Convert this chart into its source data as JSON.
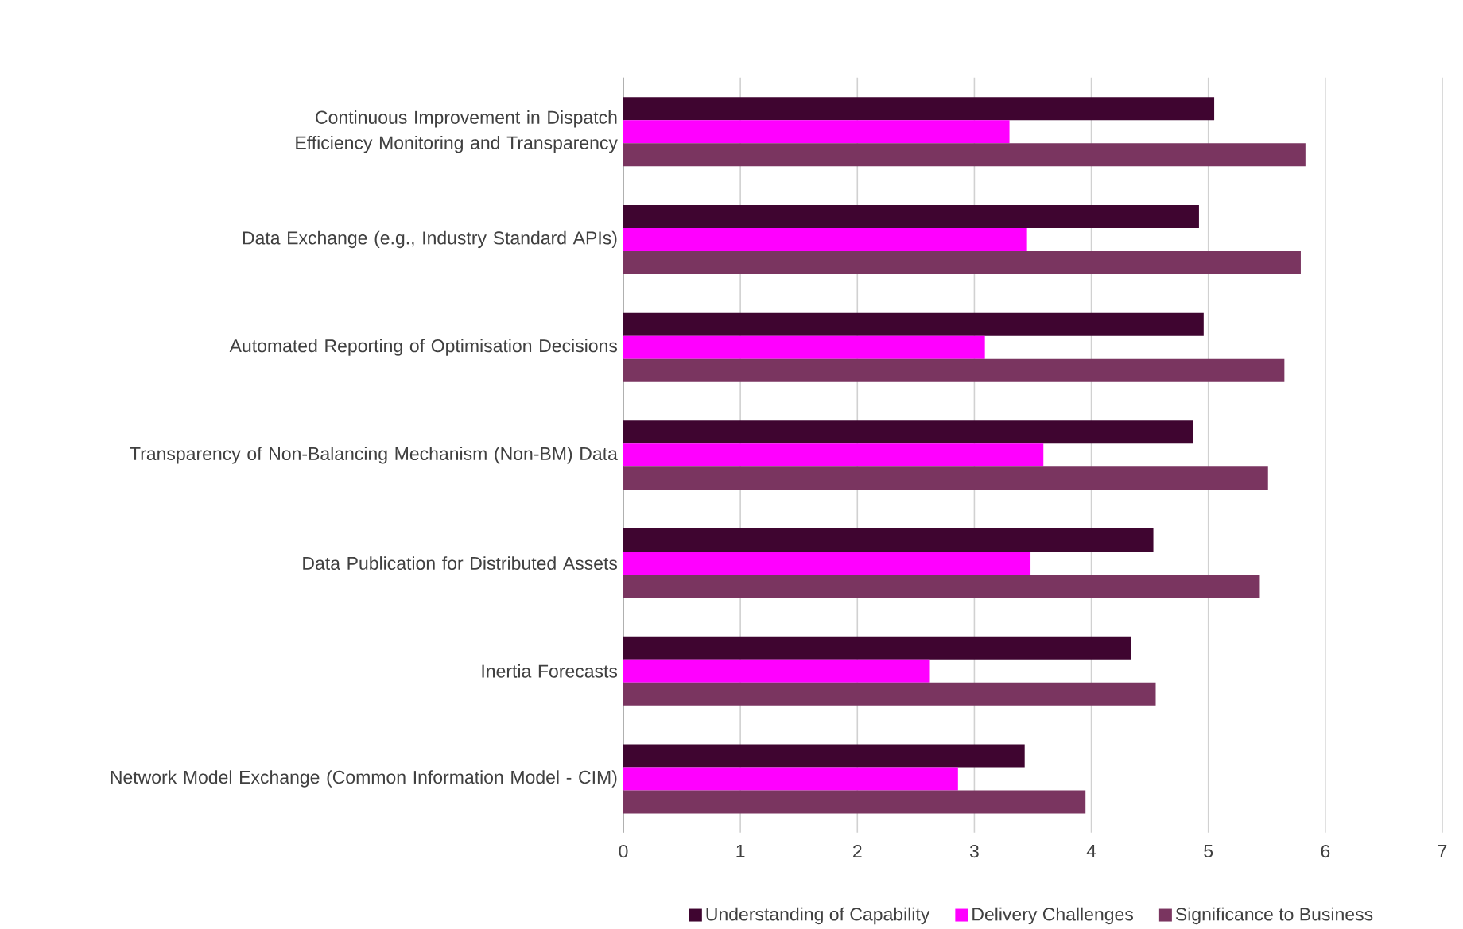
{
  "chart_data": {
    "type": "bar",
    "orientation": "horizontal",
    "categories": [
      "Continuous Improvement in Dispatch Efficiency Monitoring and Transparency",
      "Data Exchange (e.g., Industry Standard APIs)",
      "Automated Reporting of Optimisation Decisions",
      "Transparency of Non-Balancing Mechanism (Non-BM) Data",
      "Data Publication for Distributed Assets",
      "Inertia Forecasts",
      "Network Model Exchange (Common Information Model - CIM)"
    ],
    "series": [
      {
        "name": "Understanding of Capability",
        "color": "#3f0530",
        "values": [
          5.05,
          4.92,
          4.96,
          4.87,
          4.53,
          4.34,
          3.43
        ]
      },
      {
        "name": "Delivery Challenges",
        "color": "#ff00ff",
        "values": [
          3.3,
          3.45,
          3.09,
          3.59,
          3.48,
          2.62,
          2.86
        ]
      },
      {
        "name": "Significance to Business",
        "color": "#7a3560",
        "values": [
          5.83,
          5.79,
          5.65,
          5.51,
          5.44,
          4.55,
          3.95
        ]
      }
    ],
    "xlim": [
      0,
      7
    ],
    "xticks": [
      0,
      1,
      2,
      3,
      4,
      5,
      6,
      7
    ],
    "grid": "x",
    "legend": "bottom"
  }
}
